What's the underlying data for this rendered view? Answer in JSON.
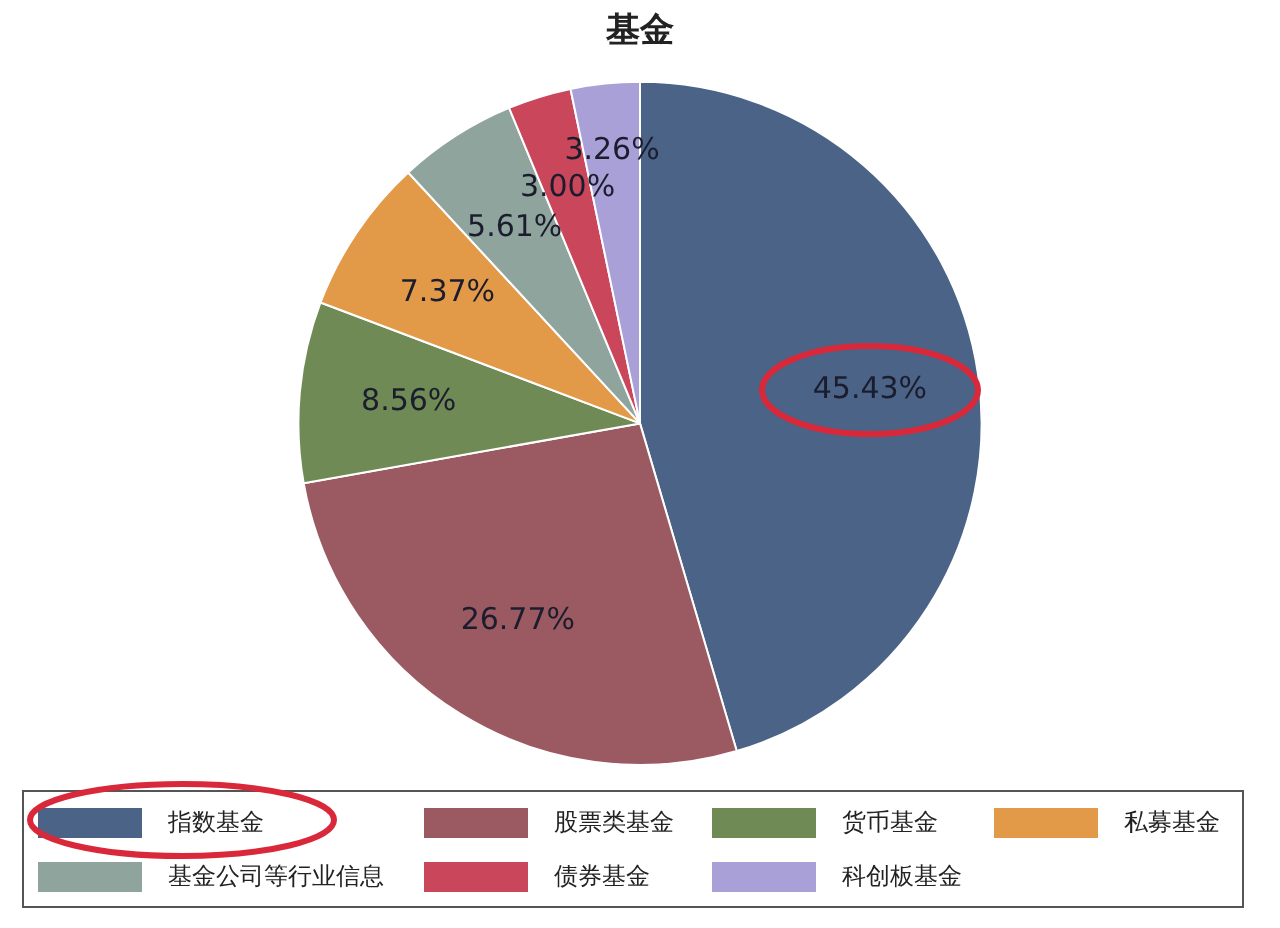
{
  "chart_data": {
    "type": "pie",
    "title": "基金",
    "categories": [
      "指数基金",
      "股票类基金",
      "货币基金",
      "私募基金",
      "基金公司等行业信息",
      "债券基金",
      "科创板基金"
    ],
    "values": [
      45.43,
      26.77,
      8.56,
      7.37,
      5.61,
      3.0,
      3.26
    ],
    "colors": [
      "#4a6386",
      "#9b5a62",
      "#6f8a55",
      "#e39a48",
      "#8fa49d",
      "#c9465b",
      "#a9a0d8"
    ],
    "value_labels": [
      "45.43%",
      "26.77%",
      "8.56%",
      "7.37%",
      "5.61%",
      "3.00%",
      "3.26%"
    ],
    "legend": "bottom"
  }
}
